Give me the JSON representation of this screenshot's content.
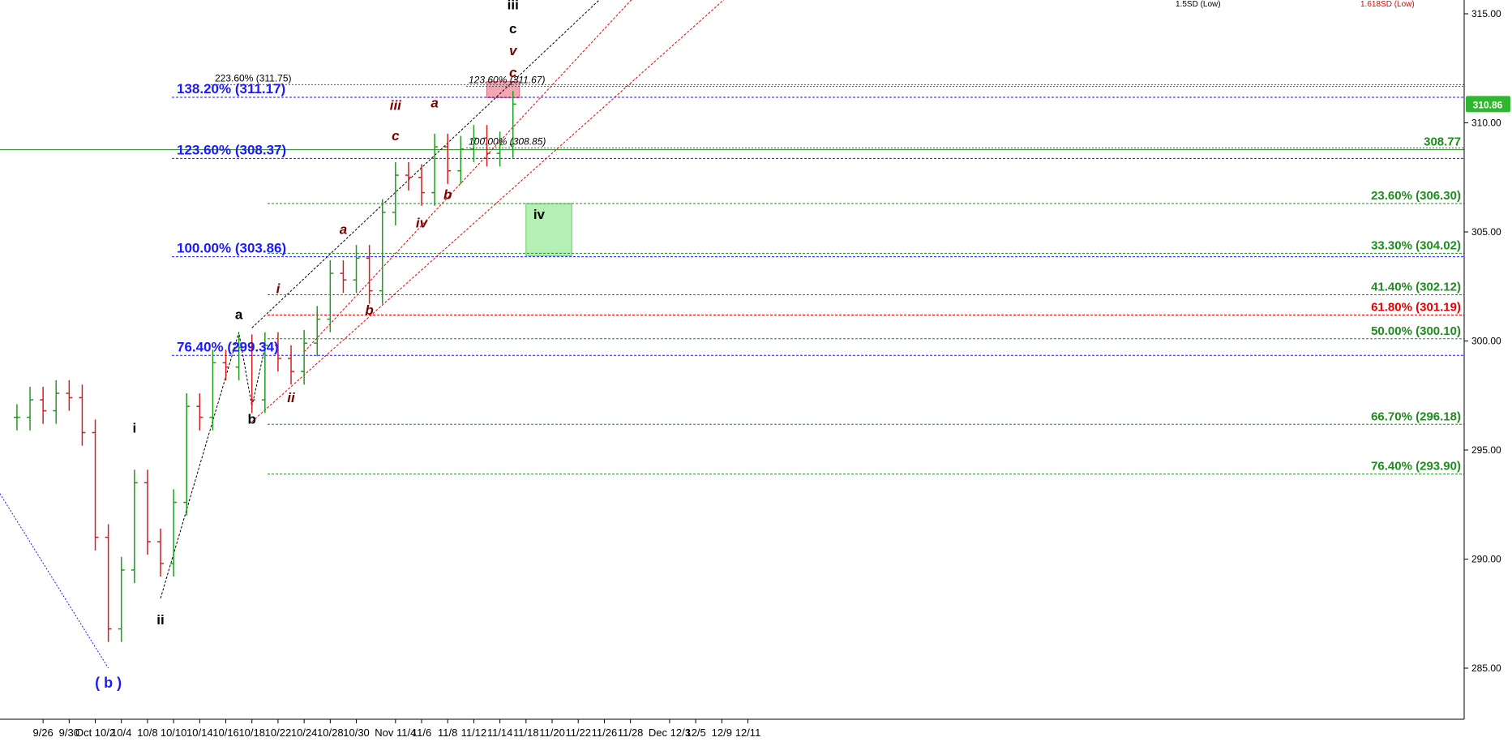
{
  "chart_data": {
    "type": "line",
    "title": "",
    "xlabel": "",
    "ylabel": "",
    "ylim": [
      283.0,
      315.6
    ],
    "y_ticks": [
      285,
      290,
      295,
      300,
      305,
      310,
      315
    ],
    "y_tick_labels": [
      "285.00",
      "290.00",
      "295.00",
      "300.00",
      "305.00",
      "310.00",
      "315.00"
    ],
    "x_tick_labels": [
      "9/26",
      "9/30",
      "Oct 10/2",
      "10/4",
      "10/8",
      "10/10",
      "10/14",
      "10/16",
      "10/18",
      "10/22",
      "10/24",
      "10/28",
      "10/30",
      "Nov 11/4",
      "11/6",
      "11/8",
      "11/12",
      "11/14",
      "11/18",
      "11/20",
      "11/22",
      "11/26",
      "11/28",
      "Dec 12/3",
      "12/5",
      "12/9",
      "12/11"
    ],
    "x_tick_dates": [
      "2019-09-26",
      "2019-09-30",
      "2019-10-02",
      "2019-10-04",
      "2019-10-08",
      "2019-10-10",
      "2019-10-14",
      "2019-10-16",
      "2019-10-18",
      "2019-10-22",
      "2019-10-24",
      "2019-10-28",
      "2019-10-30",
      "2019-11-04",
      "2019-11-06",
      "2019-11-08",
      "2019-11-12",
      "2019-11-14",
      "2019-11-18",
      "2019-11-20",
      "2019-11-22",
      "2019-11-26",
      "2019-11-28",
      "2019-12-03",
      "2019-12-05",
      "2019-12-09",
      "2019-12-11"
    ],
    "grid": false,
    "series": [
      {
        "name": "",
        "color": "#000000",
        "points": [
          [
            "2019-09-24",
            296.5
          ],
          [
            "2019-09-25",
            297.3
          ],
          [
            "2019-09-26",
            296.8
          ],
          [
            "2019-09-27",
            297.6
          ],
          [
            "2019-09-30",
            297.4
          ],
          [
            "2019-10-01",
            295.8
          ],
          [
            "2019-10-02",
            291.0
          ],
          [
            "2019-10-03",
            286.8
          ],
          [
            "2019-10-04",
            289.5
          ],
          [
            "2019-10-07",
            293.5
          ],
          [
            "2019-10-08",
            290.8
          ],
          [
            "2019-10-09",
            289.8
          ],
          [
            "2019-10-10",
            292.6
          ],
          [
            "2019-10-11",
            297.0
          ],
          [
            "2019-10-14",
            296.5
          ],
          [
            "2019-10-15",
            299.0
          ],
          [
            "2019-10-16",
            298.8
          ],
          [
            "2019-10-17",
            299.7
          ],
          [
            "2019-10-18",
            297.3
          ],
          [
            "2019-10-21",
            299.8
          ],
          [
            "2019-10-22",
            299.2
          ],
          [
            "2019-10-23",
            298.6
          ],
          [
            "2019-10-24",
            299.9
          ],
          [
            "2019-10-25",
            301.0
          ],
          [
            "2019-10-28",
            303.1
          ],
          [
            "2019-10-29",
            302.8
          ],
          [
            "2019-10-30",
            303.8
          ],
          [
            "2019-10-31",
            302.3
          ],
          [
            "2019-11-01",
            305.9
          ],
          [
            "2019-11-04",
            307.6
          ],
          [
            "2019-11-05",
            307.5
          ],
          [
            "2019-11-06",
            306.8
          ],
          [
            "2019-11-07",
            308.9
          ],
          [
            "2019-11-08",
            307.8
          ],
          [
            "2019-11-11",
            308.8
          ],
          [
            "2019-11-12",
            309.3
          ],
          [
            "2019-11-13",
            308.6
          ],
          [
            "2019-11-14",
            309.0
          ],
          [
            "2019-11-15",
            310.86
          ]
        ]
      }
    ],
    "last_price": "310.86",
    "wave_labels": [
      {
        "text": "( b )",
        "date": "2019-10-03",
        "price": 284.1,
        "color": "#1a1aff"
      },
      {
        "text": "i",
        "date": "2019-10-07",
        "price": 295.8,
        "color": "#000000"
      },
      {
        "text": "ii",
        "date": "2019-10-09",
        "price": 287.0,
        "color": "#000000"
      },
      {
        "text": "a",
        "date": "2019-10-17",
        "price": 301.0,
        "color": "#000000"
      },
      {
        "text": "b",
        "date": "2019-10-18",
        "price": 296.2,
        "color": "#000000"
      },
      {
        "text": "i",
        "date": "2019-10-22",
        "price": 302.2,
        "color": "#7a0000"
      },
      {
        "text": "ii",
        "date": "2019-10-23",
        "price": 297.2,
        "color": "#7a0000"
      },
      {
        "text": "a",
        "date": "2019-10-29",
        "price": 304.9,
        "color": "#7a0000"
      },
      {
        "text": "b",
        "date": "2019-10-31",
        "price": 301.2,
        "color": "#7a0000"
      },
      {
        "text": "iii",
        "date": "2019-11-04",
        "price": 310.6,
        "color": "#7a0000"
      },
      {
        "text": "c",
        "date": "2019-11-04",
        "price": 309.2,
        "color": "#7a0000"
      },
      {
        "text": "iv",
        "date": "2019-11-06",
        "price": 305.2,
        "color": "#7a0000"
      },
      {
        "text": "a",
        "date": "2019-11-07",
        "price": 310.7,
        "color": "#7a0000"
      },
      {
        "text": "b",
        "date": "2019-11-08",
        "price": 306.5,
        "color": "#7a0000"
      },
      {
        "text": "iii",
        "date": "2019-11-15",
        "price": 315.2,
        "color": "#000000"
      },
      {
        "text": "c",
        "date": "2019-11-15",
        "price": 314.1,
        "color": "#000000"
      },
      {
        "text": "v",
        "date": "2019-11-15",
        "price": 313.1,
        "color": "#7a0000"
      },
      {
        "text": "c",
        "date": "2019-11-15",
        "price": 312.1,
        "color": "#7a0000"
      },
      {
        "text": "iv",
        "date": "2019-11-19",
        "price": 305.6,
        "color": "#000000"
      }
    ],
    "target_zones": [
      {
        "name": "iv",
        "date_from": "2019-11-18",
        "date_to": "2019-11-21",
        "price_from": 303.9,
        "price_to": 306.3,
        "color": "#b4f0b4",
        "border": "#66cc66"
      },
      {
        "name": "",
        "date_from": "2019-11-13",
        "date_to": "2019-11-15",
        "price_from": 311.15,
        "price_to": 311.9,
        "color": "#f4a6b4",
        "border": "#e06a80"
      }
    ],
    "fib_levels_left": [
      {
        "label": "138.20% (311.17)",
        "price": 311.17,
        "color": "#1a1aff"
      },
      {
        "label": "123.60% (308.37)",
        "price": 308.37,
        "color": "#1a1aff"
      },
      {
        "label": "100.00% (303.86)",
        "price": 303.86,
        "color": "#1a1aff"
      },
      {
        "label": "76.40% (299.34)",
        "price": 299.34,
        "color": "#1a1aff"
      }
    ],
    "fib_levels_right": [
      {
        "label": "308.77",
        "price": 308.77,
        "color": "#1e8c1e"
      },
      {
        "label": "23.60% (306.30)",
        "price": 306.3,
        "color": "#1e8c1e"
      },
      {
        "label": "33.30% (304.02)",
        "price": 304.02,
        "color": "#1e8c1e"
      },
      {
        "label": "41.40% (302.12)",
        "price": 302.12,
        "color": "#1e8c1e"
      },
      {
        "label": "61.80% (301.19)",
        "price": 301.19,
        "color": "#e60000"
      },
      {
        "label": "50.00% (300.10)",
        "price": 300.1,
        "color": "#1e8c1e"
      },
      {
        "label": "66.70% (296.18)",
        "price": 296.18,
        "color": "#1e8c1e"
      },
      {
        "label": "76.40% (293.90)",
        "price": 293.9,
        "color": "#1e8c1e"
      }
    ],
    "fib_levels_top": [
      {
        "label": "223.60% (311.75)",
        "price": 311.75
      },
      {
        "label": "123.60% (311.67)",
        "price": 311.67
      },
      {
        "label": "100.00% (308.85)",
        "price": 308.85
      }
    ],
    "channel_labels": [
      {
        "label": "1.5SD (Low)",
        "color": "#000000"
      },
      {
        "label": "1.618SD (Low)",
        "color": "#e60000"
      }
    ]
  }
}
